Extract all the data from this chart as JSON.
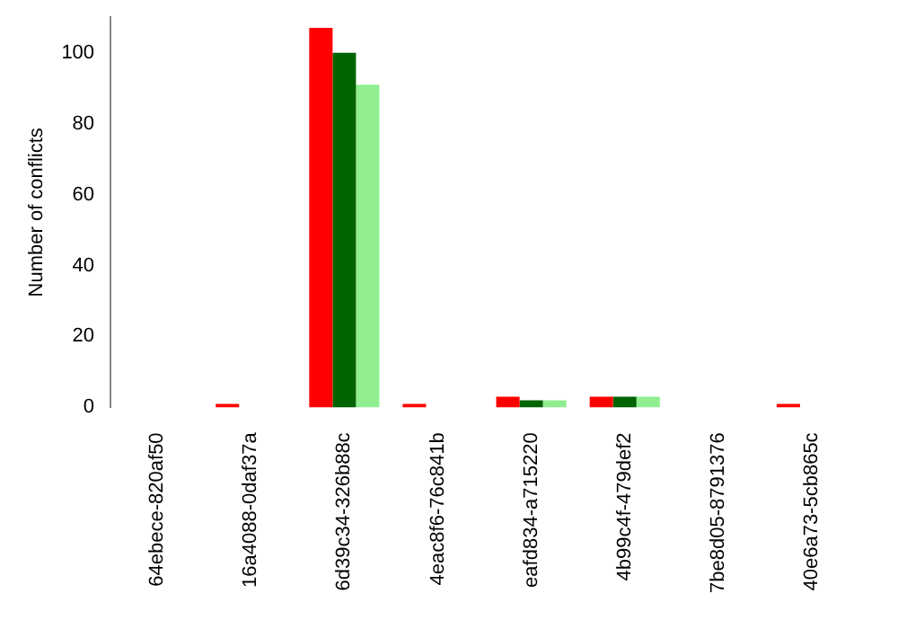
{
  "chart_data": {
    "type": "bar",
    "ylabel": "Number of conflicts",
    "categories": [
      "64ebece-820af50",
      "16a4088-0daf37a",
      "6d39c34-326b88c",
      "4eac8f6-76c841b",
      "eafd834-a715220",
      "4b99c4f-479def2",
      "7be8d05-8791376",
      "40e6a73-5cb865c"
    ],
    "series": [
      {
        "color": "#ff0000",
        "values": [
          0,
          1,
          107,
          1,
          3,
          3,
          0,
          1
        ]
      },
      {
        "color": "#006400",
        "values": [
          0,
          0,
          100,
          0,
          2,
          3,
          0,
          0
        ]
      },
      {
        "color": "#90ee90",
        "values": [
          0,
          0,
          91,
          0,
          2,
          3,
          0,
          0
        ]
      }
    ],
    "ylim": [
      0,
      110
    ],
    "yticks": [
      0,
      20,
      40,
      60,
      80,
      100
    ],
    "grid": false,
    "legend": false
  }
}
